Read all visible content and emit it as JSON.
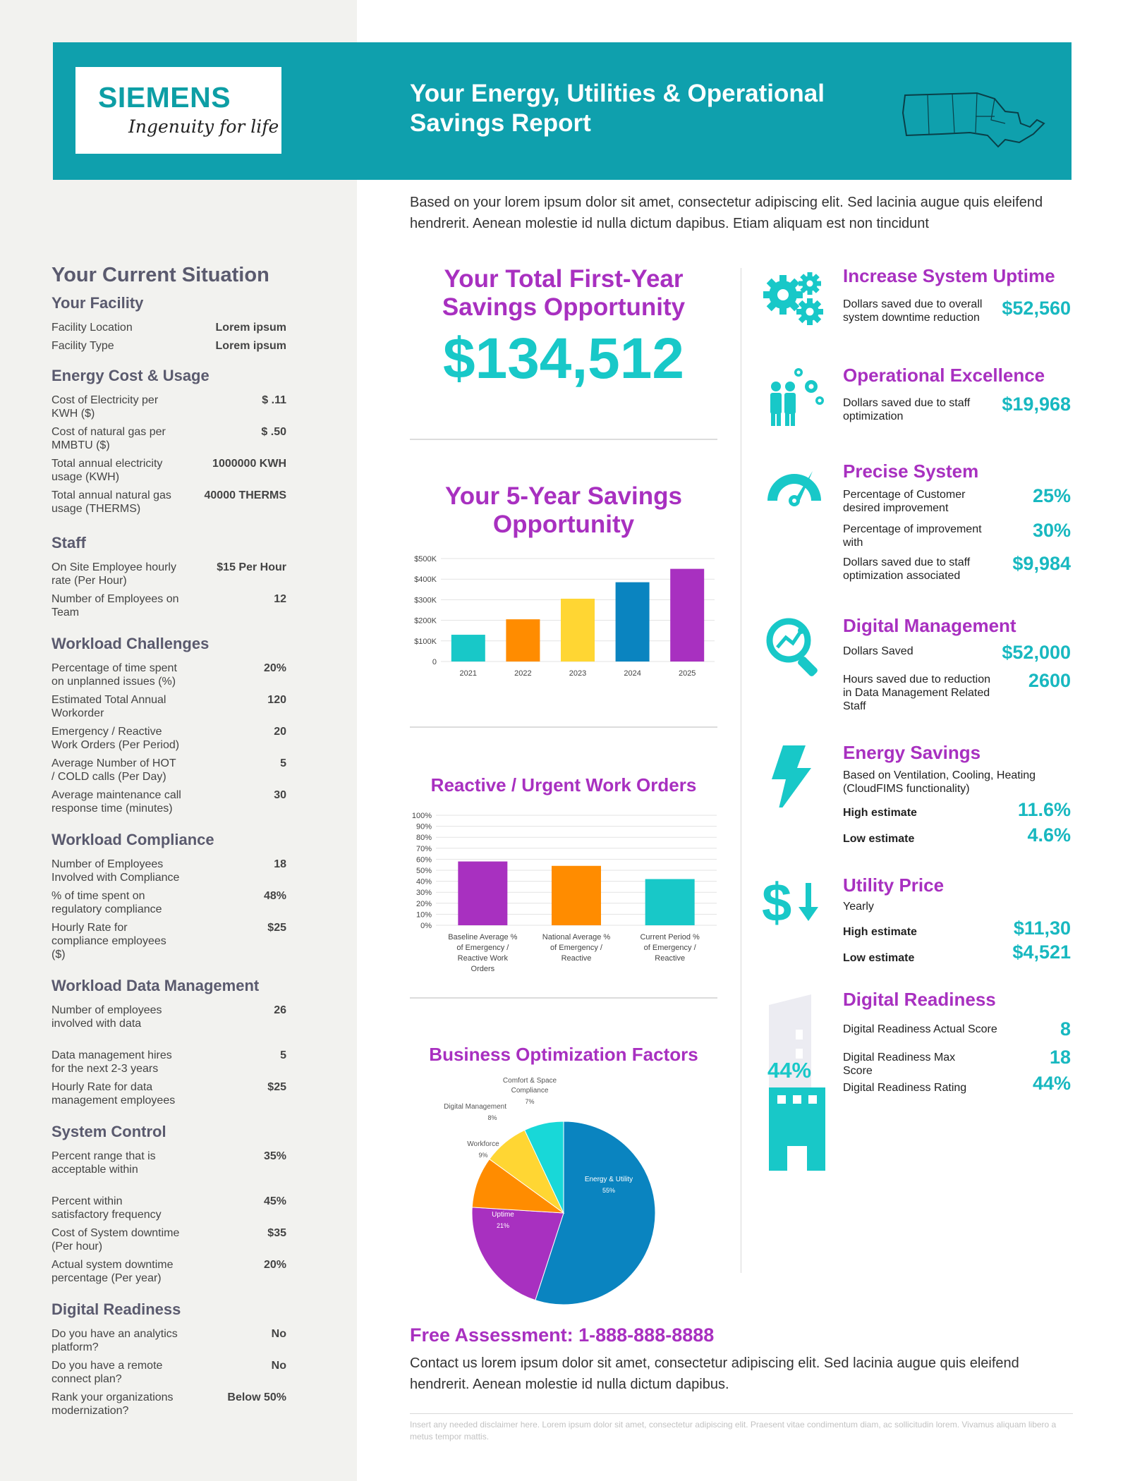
{
  "brand": {
    "name": "SIEMENS",
    "tagline": "Ingenuity for life"
  },
  "header": {
    "title": "Your Energy, Utilities & Operational Savings Report"
  },
  "intro": "Based on your lorem ipsum dolor sit amet, consectetur adipiscing elit. Sed lacinia augue quis eleifend hendrerit. Aenean molestie id nulla dictum dapibus. Etiam aliquam est non tincidunt",
  "sidebar": {
    "title": "Your Current Situation",
    "sections": [
      {
        "heading": "Your Facility",
        "rows": [
          {
            "label": "Facility Location",
            "value": "Lorem ipsum"
          },
          {
            "label": "Facility Type",
            "value": "Lorem ipsum"
          }
        ]
      },
      {
        "heading": "Energy Cost & Usage",
        "rows": [
          {
            "label": "Cost of Electricity per KWH ($)",
            "value": "$ .11"
          },
          {
            "label": "Cost of natural gas per MMBTU ($)",
            "value": "$ .50"
          },
          {
            "label": "Total annual electricity usage (KWH)",
            "value": "1000000 KWH"
          },
          {
            "label": "Total annual natural gas usage (THERMS)",
            "value": "40000 THERMS"
          }
        ]
      },
      {
        "heading": "Staff",
        "rows": [
          {
            "label": "On Site Employee hourly rate (Per Hour)",
            "value": "$15 Per Hour"
          },
          {
            "label": "Number of Employees on Team",
            "value": "12"
          }
        ]
      },
      {
        "heading": "Workload Challenges",
        "rows": [
          {
            "label": "Percentage of time spent on unplanned issues (%)",
            "value": "20%"
          },
          {
            "label": "Estimated Total Annual Workorder",
            "value": "120"
          },
          {
            "label": "Emergency / Reactive Work Orders (Per Period)",
            "value": "20"
          },
          {
            "label": "Average Number of HOT / COLD calls (Per Day)",
            "value": "5"
          },
          {
            "label": "Average maintenance call response time (minutes)",
            "value": "30"
          }
        ]
      },
      {
        "heading": "Workload Compliance",
        "rows": [
          {
            "label": "Number of Employees Involved with Compliance",
            "value": "18"
          },
          {
            "label": "% of time spent on regulatory compliance",
            "value": "48%"
          },
          {
            "label": "Hourly Rate for compliance employees ($)",
            "value": "$25"
          }
        ]
      },
      {
        "heading": "Workload Data Management",
        "rows": [
          {
            "label": "Number of employees involved with data",
            "value": "26"
          },
          {
            "label": "Data management hires for the next 2-3 years",
            "value": "5"
          },
          {
            "label": "Hourly Rate for data management  employees",
            "value": "$25"
          }
        ]
      },
      {
        "heading": "System Control",
        "rows": [
          {
            "label": "Percent range that is acceptable within",
            "value": "35%"
          },
          {
            "label": "Percent within satisfactory frequency",
            "value": "45%"
          },
          {
            "label": "Cost of System downtime (Per hour)",
            "value": "$35"
          },
          {
            "label": "Actual system downtime percentage (Per year)",
            "value": "20%"
          }
        ]
      },
      {
        "heading": "Digital Readiness",
        "rows": [
          {
            "label": "Do you have an analytics platform?",
            "value": "No"
          },
          {
            "label": "Do you have a remote connect plan?",
            "value": "No"
          },
          {
            "label": "Rank your organizations modernization?",
            "value": "Below 50%"
          }
        ]
      }
    ]
  },
  "center": {
    "total_title": "Your Total First-Year Savings Opportunity",
    "total_amount": "$134,512",
    "five_year_title": "Your 5-Year Savings Opportunity",
    "work_orders_title": "Reactive / Urgent Work Orders",
    "factors_title": "Business Optimization Factors"
  },
  "right": {
    "uptime": {
      "title": "Increase System Uptime",
      "label": "Dollars saved due to overall system downtime reduction",
      "value": "$52,560"
    },
    "opex": {
      "title": "Operational Excellence",
      "label": "Dollars saved due to staff optimization",
      "value": "$19,968"
    },
    "precise": {
      "title": "Precise System",
      "rows": [
        {
          "label": "Percentage of Customer desired improvement",
          "value": "25%"
        },
        {
          "label": "Percentage of improvement with",
          "value": "30%"
        },
        {
          "label": "Dollars saved due to staff optimization associated",
          "value": "$9,984"
        }
      ]
    },
    "digital_mgmt": {
      "title": "Digital Management",
      "rows": [
        {
          "label": "Dollars Saved",
          "value": "$52,000"
        },
        {
          "label": "Hours saved due to reduction in Data Management Related Staff",
          "value": "2600"
        }
      ]
    },
    "energy": {
      "title": "Energy Savings",
      "desc": "Based on Ventilation, Cooling, Heating (CloudFIMS functionality)",
      "high_label": "High estimate",
      "high_value": "11.6%",
      "low_label": "Low estimate",
      "low_value": "4.6%"
    },
    "utility": {
      "title": "Utility Price",
      "desc": "Yearly",
      "high_label": "High estimate",
      "high_value": "$11,30",
      "low_label": "Low estimate",
      "low_value": "$4,521"
    },
    "readiness": {
      "title": "Digital Readiness",
      "icon_pct": "44%",
      "rows": [
        {
          "label": "Digital Readiness Actual Score",
          "value": "8"
        },
        {
          "label": "Digital Readiness Max Score",
          "value": "18"
        },
        {
          "label": "Digital Readiness Rating",
          "value": "44%"
        }
      ]
    }
  },
  "footer": {
    "assessment_title": "Free Assessment: 1-888-888-8888",
    "assessment_text": "Contact us lorem ipsum dolor sit amet, consectetur adipiscing elit. Sed lacinia augue quis eleifend hendrerit. Aenean molestie id nulla dictum dapibus.",
    "disclaimer": "Insert any needed disclaimer here. Lorem ipsum dolor sit amet, consectetur adipiscing elit. Praesent vitae condimentum diam, ac sollicitudin lorem. Vivamus aliquam libero a metus tempor mattis."
  },
  "colors": {
    "teal": "#0fa0ad",
    "accent_teal": "#18c8c8",
    "purple": "#a830c0",
    "sidebar_bg": "#f2f2ef"
  },
  "chart_data": [
    {
      "type": "bar",
      "title": "Your 5-Year Savings Opportunity",
      "categories": [
        "2021",
        "2022",
        "2023",
        "2024",
        "2025"
      ],
      "values": [
        130000,
        205000,
        305000,
        385000,
        450000
      ],
      "colors": [
        "#18c8c8",
        "#ff8c00",
        "#ffd633",
        "#0a84c0",
        "#a830c0"
      ],
      "ylim": [
        0,
        500000
      ],
      "yticks": [
        "0",
        "$100K",
        "$200K",
        "$300K",
        "$400K",
        "$500K"
      ]
    },
    {
      "type": "bar",
      "title": "Reactive / Urgent Work Orders",
      "categories": [
        "Baseline Average % of Emergency / Reactive Work Orders",
        "National Average % of Emergency / Reactive",
        "Current Period % of Emergency / Reactive"
      ],
      "values": [
        58,
        54,
        42
      ],
      "colors": [
        "#a830c0",
        "#ff8c00",
        "#18c8c8"
      ],
      "ylim": [
        0,
        100
      ],
      "yticks": [
        "0%",
        "10%",
        "20%",
        "30%",
        "40%",
        "50%",
        "60%",
        "70%",
        "80%",
        "90%",
        "100%"
      ]
    },
    {
      "type": "pie",
      "title": "Business Optimization Factors",
      "slices": [
        {
          "label": "Energy & Utility",
          "pct_label": "55%",
          "value": 55,
          "color": "#0a84c0"
        },
        {
          "label": "Uptime",
          "pct_label": "21%",
          "value": 21,
          "color": "#a830c0"
        },
        {
          "label": "Workforce",
          "pct_label": "9%",
          "value": 9,
          "color": "#ff8c00"
        },
        {
          "label": "Digital Management",
          "pct_label": "8%",
          "value": 8,
          "color": "#ffd633"
        },
        {
          "label": "Comfort & Space Compliance",
          "pct_label": "7%",
          "value": 7,
          "color": "#18d8d8"
        }
      ]
    }
  ]
}
